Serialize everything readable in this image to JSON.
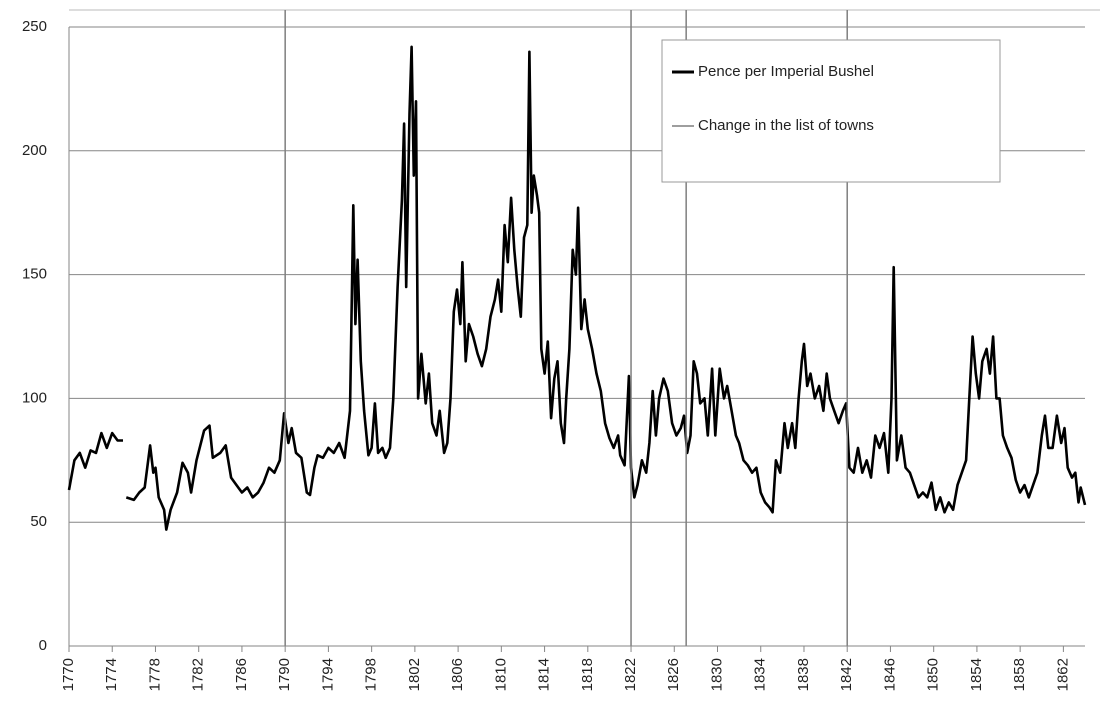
{
  "chart_data": {
    "type": "line",
    "series": [
      {
        "name": "Pence per Imperial Bushel",
        "color": "#000000",
        "x": [
          1770,
          1770.5,
          1771,
          1771.5,
          1772,
          1772.5,
          1773,
          1773.5,
          1774,
          1774.5,
          1775,
          1775.1,
          1775.3,
          1776,
          1776.5,
          1777,
          1777.5,
          1777.8,
          1778,
          1778.3,
          1778.8,
          1779,
          1779.4,
          1780,
          1780.5,
          1781,
          1781.3,
          1781.8,
          1782.5,
          1783,
          1783.3,
          1784,
          1784.5,
          1785,
          1785.5,
          1786,
          1786.5,
          1787,
          1787.5,
          1788,
          1788.5,
          1789,
          1789.5,
          1789.9,
          1790.3,
          1790.6,
          1791,
          1791.5,
          1792,
          1792.3,
          1792.7,
          1793,
          1793.5,
          1794,
          1794.5,
          1795,
          1795.5,
          1796,
          1796.3,
          1796.5,
          1796.7,
          1797,
          1797.3,
          1797.7,
          1798,
          1798.3,
          1798.6,
          1799,
          1799.3,
          1799.7,
          1800,
          1800.4,
          1800.8,
          1801,
          1801.2,
          1801.5,
          1801.7,
          1801.9,
          1802.1,
          1802.3,
          1802.6,
          1803,
          1803.3,
          1803.6,
          1804,
          1804.3,
          1804.7,
          1805,
          1805.3,
          1805.6,
          1805.9,
          1806.2,
          1806.4,
          1806.7,
          1807,
          1807.4,
          1807.8,
          1808.2,
          1808.6,
          1809,
          1809.4,
          1809.7,
          1810,
          1810.3,
          1810.6,
          1810.9,
          1811.2,
          1811.5,
          1811.8,
          1812.1,
          1812.4,
          1812.6,
          1812.8,
          1813,
          1813.3,
          1813.5,
          1813.7,
          1814,
          1814.3,
          1814.6,
          1814.9,
          1815.2,
          1815.5,
          1815.8,
          1816,
          1816.3,
          1816.6,
          1816.9,
          1817.1,
          1817.4,
          1817.7,
          1818,
          1818.4,
          1818.8,
          1819.2,
          1819.6,
          1820,
          1820.4,
          1820.8,
          1821,
          1821.4,
          1821.8,
          1822,
          1822.3,
          1822.6,
          1823,
          1823.4,
          1823.7,
          1824,
          1824.3,
          1824.6,
          1825,
          1825.4,
          1825.8,
          1826.2,
          1826.6,
          1826.9,
          1827.2,
          1827.5,
          1827.8,
          1828.1,
          1828.4,
          1828.8,
          1829.1,
          1829.5,
          1829.8,
          1830.2,
          1830.6,
          1830.9,
          1831.3,
          1831.7,
          1832,
          1832.4,
          1832.8,
          1833.2,
          1833.6,
          1834,
          1834.4,
          1834.8,
          1835.1,
          1835.4,
          1835.8,
          1836.2,
          1836.5,
          1836.9,
          1837.2,
          1837.5,
          1837.8,
          1838,
          1838.3,
          1838.6,
          1839,
          1839.4,
          1839.8,
          1840.1,
          1840.4,
          1840.8,
          1841.2,
          1841.6,
          1841.9,
          1842.2,
          1842.6,
          1843,
          1843.4,
          1843.8,
          1844.2,
          1844.6,
          1845,
          1845.4,
          1845.8,
          1846.1,
          1846.3,
          1846.6,
          1847,
          1847.4,
          1847.8,
          1848.2,
          1848.6,
          1849,
          1849.4,
          1849.8,
          1850.2,
          1850.6,
          1851,
          1851.4,
          1851.8,
          1852.2,
          1852.6,
          1853,
          1853.3,
          1853.6,
          1853.9,
          1854.2,
          1854.5,
          1854.9,
          1855.2,
          1855.5,
          1855.8,
          1856.1,
          1856.4,
          1856.8,
          1857.2,
          1857.6,
          1858,
          1858.4,
          1858.8,
          1859.2,
          1859.6,
          1860,
          1860.3,
          1860.6,
          1861,
          1861.4,
          1861.8,
          1862.1,
          1862.4,
          1862.8,
          1863.1,
          1863.4,
          1863.6,
          1864
        ],
        "values": [
          63,
          75,
          78,
          72,
          79,
          78,
          86,
          80,
          86,
          83,
          83,
          null,
          60,
          59,
          62,
          64,
          81,
          70,
          72,
          60,
          55,
          47,
          55,
          62,
          74,
          70,
          62,
          75,
          87,
          89,
          76,
          78,
          81,
          68,
          65,
          62,
          64,
          60,
          62,
          66,
          72,
          70,
          75,
          94,
          82,
          88,
          78,
          76,
          62,
          61,
          72,
          77,
          76,
          80,
          78,
          82,
          76,
          95,
          178,
          130,
          156,
          115,
          95,
          77,
          80,
          98,
          78,
          80,
          76,
          80,
          100,
          145,
          180,
          211,
          145,
          215,
          242,
          190,
          220,
          100,
          118,
          98,
          110,
          90,
          85,
          95,
          78,
          82,
          100,
          135,
          144,
          130,
          155,
          115,
          130,
          125,
          118,
          113,
          120,
          133,
          140,
          148,
          135,
          170,
          155,
          181,
          160,
          145,
          133,
          165,
          170,
          240,
          175,
          190,
          182,
          175,
          120,
          110,
          123,
          92,
          108,
          115,
          90,
          82,
          100,
          120,
          160,
          150,
          177,
          128,
          140,
          128,
          120,
          110,
          103,
          90,
          84,
          80,
          85,
          77,
          73,
          109,
          72,
          60,
          65,
          75,
          70,
          82,
          103,
          85,
          100,
          108,
          103,
          90,
          85,
          88,
          93,
          78,
          85,
          115,
          110,
          98,
          100,
          85,
          112,
          85,
          112,
          100,
          105,
          95,
          85,
          82,
          75,
          73,
          70,
          72,
          62,
          58,
          56,
          54,
          75,
          70,
          90,
          80,
          90,
          80,
          100,
          115,
          122,
          105,
          110,
          100,
          105,
          95,
          110,
          100,
          95,
          90,
          95,
          98,
          72,
          70,
          80,
          70,
          75,
          68,
          85,
          80,
          86,
          70,
          100,
          153,
          75,
          85,
          72,
          70,
          65,
          60,
          62,
          60,
          66,
          55,
          60,
          54,
          58,
          55,
          65,
          70,
          75,
          100,
          125,
          110,
          100,
          115,
          120,
          110,
          125,
          100,
          100,
          85,
          80,
          76,
          67,
          62,
          65,
          60,
          65,
          70,
          85,
          93,
          80,
          80,
          93,
          82,
          88,
          72,
          68,
          70,
          58,
          64,
          57
        ]
      },
      {
        "name": "Change in the list of towns",
        "color": "#7f7f7f",
        "x": [
          1790,
          1822,
          1827.1,
          1842
        ]
      }
    ],
    "xlim": [
      1770,
      1864
    ],
    "xticks": [
      1770,
      1774,
      1778,
      1782,
      1786,
      1790,
      1794,
      1798,
      1802,
      1806,
      1810,
      1814,
      1818,
      1822,
      1826,
      1830,
      1834,
      1838,
      1842,
      1846,
      1850,
      1854,
      1858,
      1862
    ],
    "ylim": [
      0,
      250
    ],
    "yticks": [
      0,
      50,
      100,
      150,
      200,
      250
    ],
    "grid": true,
    "legend": "upper right"
  }
}
